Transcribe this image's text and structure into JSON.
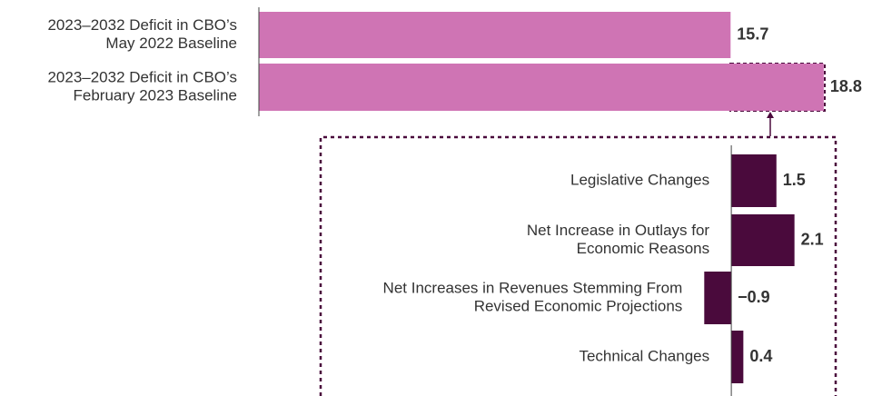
{
  "chart_data": [
    {
      "type": "bar",
      "orientation": "horizontal",
      "categories": [
        [
          "2023–2032 Deficit in CBO’s",
          "May 2022 Baseline"
        ],
        [
          "2023–2032 Deficit in CBO’s",
          "February 2023 Baseline"
        ]
      ],
      "values": [
        15.7,
        18.8
      ],
      "color": "#cf74b4",
      "xlim": [
        0,
        19.5
      ]
    },
    {
      "type": "bar",
      "orientation": "horizontal",
      "categories": [
        [
          "Legislative Changes"
        ],
        [
          "Net Increase in Outlays for",
          "Economic Reasons"
        ],
        [
          "Net Increases in Revenues Stemming From",
          "Revised Economic Projections"
        ],
        [
          "Technical Changes"
        ]
      ],
      "values": [
        1.5,
        2.1,
        -0.9,
        0.4
      ],
      "value_labels": [
        "1.5",
        "2.1",
        "−0.9",
        "0.4"
      ],
      "color": "#4a0a3c",
      "xlim": [
        -1,
        3.5
      ]
    }
  ]
}
